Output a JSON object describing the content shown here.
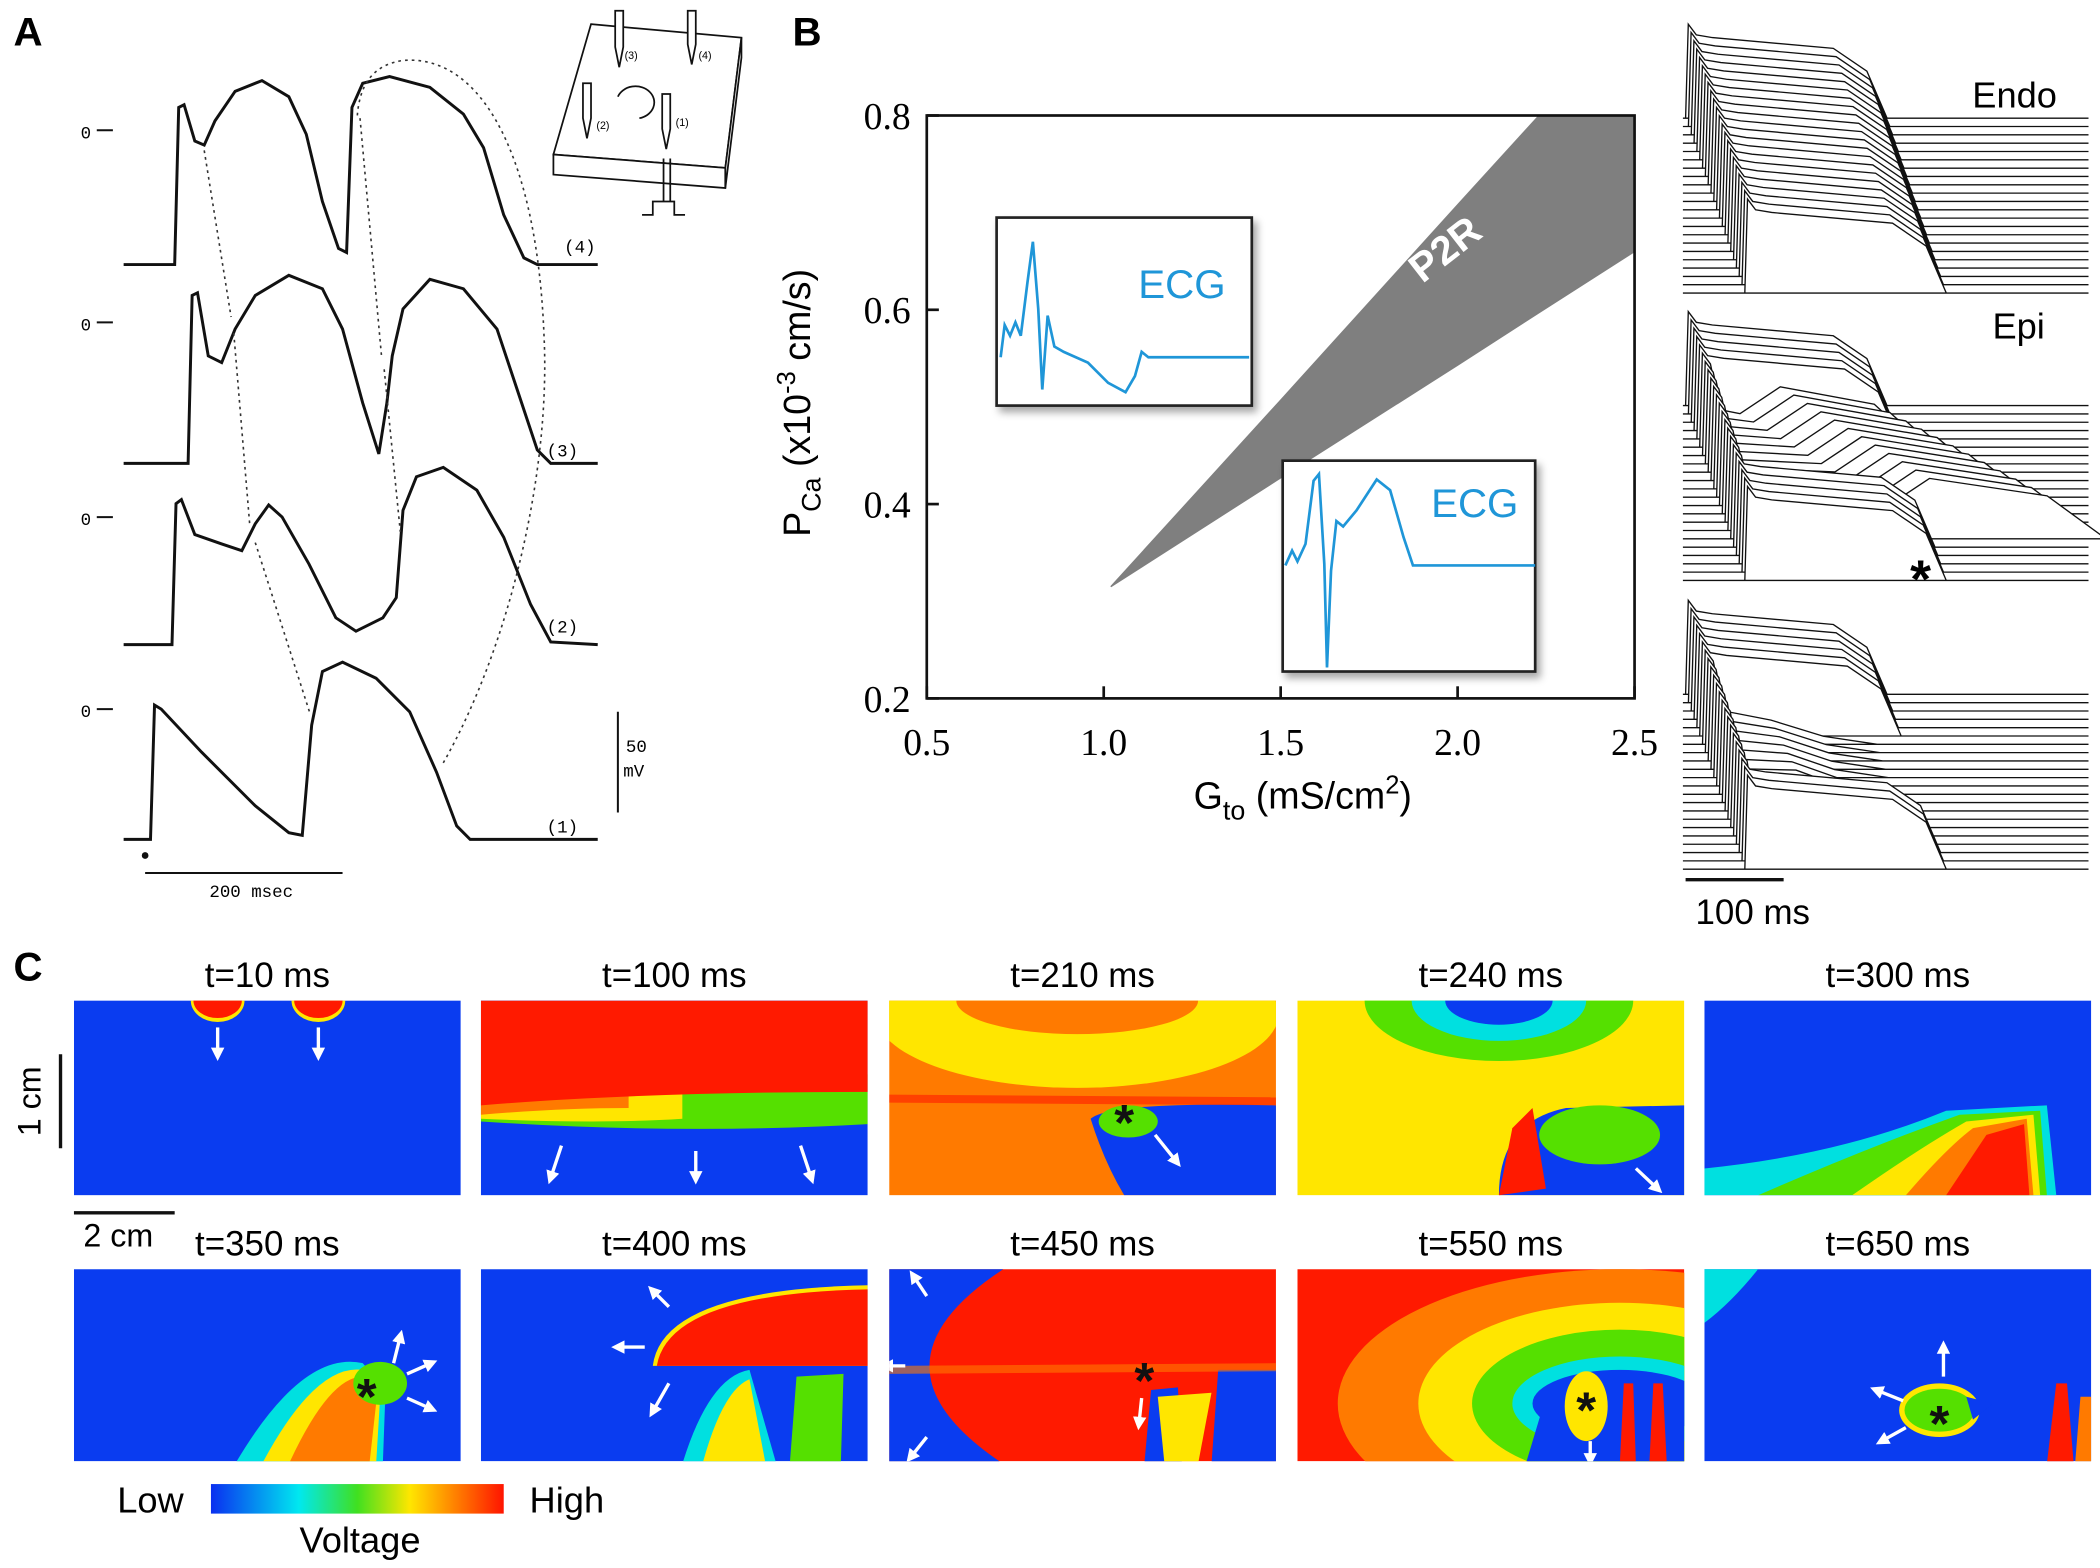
{
  "panel_a": {
    "label": "A",
    "zero_labels": [
      "0",
      "0",
      "0",
      "0"
    ],
    "trace_labels": [
      "(4)",
      "(3)",
      "(2)",
      "(1)"
    ],
    "electrode_labels": [
      "(3)",
      "(4)",
      "(2)",
      "(1)"
    ],
    "voltage_scale": [
      "50",
      "mV"
    ],
    "time_scale": "200 msec"
  },
  "chart_data": {
    "type": "area",
    "label": "B",
    "xlabel": [
      "G",
      "to",
      " (mS/cm",
      "2",
      ")"
    ],
    "ylabel": [
      "P",
      "Ca",
      " (x10",
      "-3",
      " cm/s)"
    ],
    "xlim": [
      0.5,
      2.5
    ],
    "ylim": [
      0.2,
      0.8
    ],
    "xticks": [
      0.5,
      {
        "value": 1,
        "label": "1.0"
      },
      1.5,
      {
        "value": 2,
        "label": "2.0"
      },
      2.5
    ],
    "yticks": [
      0.2,
      0.4,
      0.6,
      0.8
    ],
    "area": {
      "label": "P2R",
      "color": "#7f7f7f",
      "x": [
        1.02,
        1.5,
        2.0,
        2.23,
        2.5
      ],
      "upper": [
        0.315,
        0.507,
        0.708,
        0.8,
        0.8
      ],
      "lower": [
        0.315,
        0.427,
        0.543,
        0.597,
        0.66
      ]
    },
    "insets": [
      "ECG",
      "ECG"
    ]
  },
  "traces": {
    "labels": [
      "Endo",
      "Epi"
    ],
    "marker": "*",
    "time_scale": "100 ms"
  },
  "panel_c": {
    "label": "C",
    "frames": [
      {
        "title": "t=10 ms"
      },
      {
        "title": "t=100 ms"
      },
      {
        "title": "t=210 ms"
      },
      {
        "title": "t=240 ms"
      },
      {
        "title": "t=300 ms"
      },
      {
        "title": "t=350 ms"
      },
      {
        "title": "t=400 ms"
      },
      {
        "title": "t=450 ms"
      },
      {
        "title": "t=550 ms"
      },
      {
        "title": "t=650 ms"
      }
    ],
    "asterisk": "*",
    "length_scales": [
      "1 cm",
      "2 cm"
    ],
    "colorbar": {
      "low": "Low",
      "high": "High",
      "title": "Voltage"
    }
  }
}
